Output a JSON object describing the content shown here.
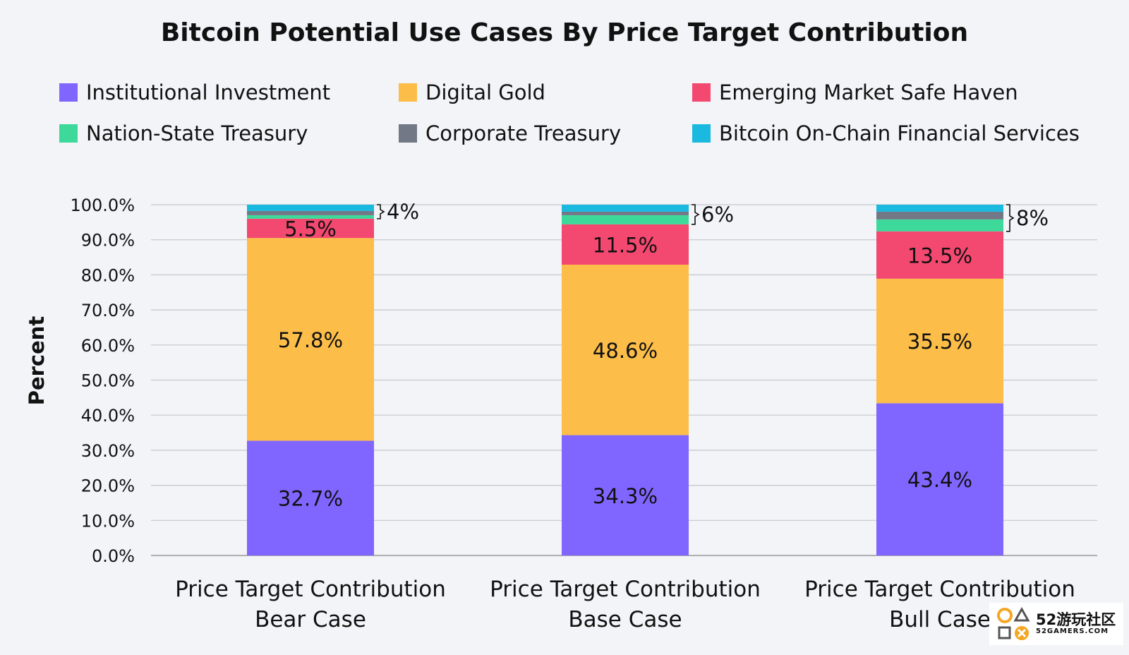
{
  "chart_data": {
    "type": "bar",
    "stacked": true,
    "title": "Bitcoin Potential Use Cases By Price Target Contribution",
    "ylabel": "Percent",
    "ylim": [
      0,
      100
    ],
    "yticks": [
      "0.0%",
      "10.0%",
      "20.0%",
      "30.0%",
      "40.0%",
      "50.0%",
      "60.0%",
      "70.0%",
      "80.0%",
      "90.0%",
      "100.0%"
    ],
    "grid": true,
    "legend_position": "top",
    "categories": [
      [
        "Price Target Contribution",
        "Bear Case"
      ],
      [
        "Price Target Contribution",
        "Base Case"
      ],
      [
        "Price Target Contribution",
        "Bull Case"
      ]
    ],
    "series": [
      {
        "name": "Institutional Investment",
        "color": "#8066fe",
        "values": [
          32.7,
          34.3,
          43.4
        ],
        "labels": [
          "32.7%",
          "34.3%",
          "43.4%"
        ]
      },
      {
        "name": "Digital Gold",
        "color": "#fcbd49",
        "values": [
          57.8,
          48.6,
          35.5
        ],
        "labels": [
          "57.8%",
          "48.6%",
          "35.5%"
        ]
      },
      {
        "name": "Emerging Market Safe Haven",
        "color": "#f34870",
        "values": [
          5.5,
          11.5,
          13.5
        ],
        "labels": [
          "5.5%",
          "11.5%",
          "13.5%"
        ]
      },
      {
        "name": "Nation-State Treasury",
        "color": "#3cd99a",
        "values": [
          1.0,
          2.6,
          3.4
        ],
        "labels": [
          "",
          "",
          ""
        ]
      },
      {
        "name": "Corporate Treasury",
        "color": "#737887",
        "values": [
          1.2,
          1.0,
          2.2
        ],
        "labels": [
          "",
          "",
          ""
        ]
      },
      {
        "name": "Bitcoin On-Chain Financial Services",
        "color": "#1ab9e0",
        "values": [
          1.8,
          2.0,
          2.0
        ],
        "labels": [
          "",
          "",
          ""
        ]
      }
    ],
    "bracket_annotations": [
      "4%",
      "6%",
      "8%"
    ]
  },
  "watermark": {
    "main": "52游玩社区",
    "sub": "52GAMERS.COM"
  }
}
